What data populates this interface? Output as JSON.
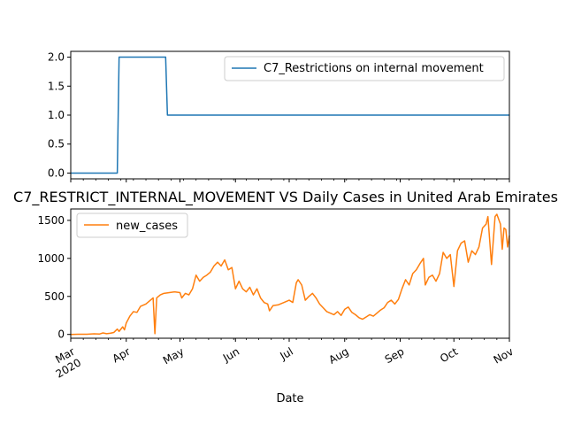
{
  "chart_data": [
    {
      "type": "line",
      "title": "",
      "xlabel": "",
      "ylabel": "",
      "x_axis": "date",
      "xlim": [
        "2020-03-01",
        "2020-11-01"
      ],
      "ylim": [
        -0.1,
        2.1
      ],
      "yticks": [
        "0.0",
        "0.5",
        "1.0",
        "1.5",
        "2.0"
      ],
      "yticks_values": [
        0.0,
        0.5,
        1.0,
        1.5,
        2.0
      ],
      "grid": false,
      "legend": "upper right",
      "series": [
        {
          "name": "C7_Restrictions on internal movement",
          "color": "#1f77b4",
          "points": [
            [
              "2020-03-01",
              0
            ],
            [
              "2020-03-27",
              0
            ],
            [
              "2020-03-28",
              2
            ],
            [
              "2020-04-23",
              2
            ],
            [
              "2020-04-24",
              1
            ],
            [
              "2020-11-01",
              1
            ]
          ]
        }
      ]
    },
    {
      "type": "line",
      "title": "C7_RESTRICT_INTERNAL_MOVEMENT VS Daily Cases in United Arab Emirates",
      "xlabel": "Date",
      "ylabel": "",
      "x_axis": "date",
      "xlim": [
        "2020-03-01",
        "2020-11-01"
      ],
      "ylim": [
        -50,
        1650
      ],
      "yticks": [
        "0",
        "500",
        "1000",
        "1500"
      ],
      "yticks_values": [
        0,
        500,
        1000,
        1500
      ],
      "xticks": [
        {
          "date": "2020-03-01",
          "label": "Mar",
          "sublabel": "2020"
        },
        {
          "date": "2020-04-01",
          "label": "Apr"
        },
        {
          "date": "2020-05-01",
          "label": "May"
        },
        {
          "date": "2020-06-01",
          "label": "Jun"
        },
        {
          "date": "2020-07-01",
          "label": "Jul"
        },
        {
          "date": "2020-08-01",
          "label": "Aug"
        },
        {
          "date": "2020-09-01",
          "label": "Sep"
        },
        {
          "date": "2020-10-01",
          "label": "Oct"
        },
        {
          "date": "2020-11-01",
          "label": "Nov"
        }
      ],
      "grid": false,
      "legend": "upper left",
      "series": [
        {
          "name": "new_cases",
          "color": "#ff7f0e",
          "points": [
            [
              "2020-03-01",
              0
            ],
            [
              "2020-03-05",
              3
            ],
            [
              "2020-03-10",
              2
            ],
            [
              "2020-03-14",
              8
            ],
            [
              "2020-03-17",
              5
            ],
            [
              "2020-03-19",
              20
            ],
            [
              "2020-03-21",
              10
            ],
            [
              "2020-03-23",
              15
            ],
            [
              "2020-03-25",
              25
            ],
            [
              "2020-03-27",
              70
            ],
            [
              "2020-03-28",
              40
            ],
            [
              "2020-03-30",
              100
            ],
            [
              "2020-03-31",
              60
            ],
            [
              "2020-04-01",
              150
            ],
            [
              "2020-04-03",
              240
            ],
            [
              "2020-04-05",
              300
            ],
            [
              "2020-04-07",
              290
            ],
            [
              "2020-04-09",
              370
            ],
            [
              "2020-04-12",
              400
            ],
            [
              "2020-04-15",
              460
            ],
            [
              "2020-04-16",
              480
            ],
            [
              "2020-04-17",
              10
            ],
            [
              "2020-04-18",
              480
            ],
            [
              "2020-04-20",
              520
            ],
            [
              "2020-04-22",
              540
            ],
            [
              "2020-04-25",
              550
            ],
            [
              "2020-04-28",
              560
            ],
            [
              "2020-05-01",
              550
            ],
            [
              "2020-05-02",
              480
            ],
            [
              "2020-05-04",
              540
            ],
            [
              "2020-05-06",
              520
            ],
            [
              "2020-05-08",
              600
            ],
            [
              "2020-05-10",
              780
            ],
            [
              "2020-05-12",
              700
            ],
            [
              "2020-05-14",
              750
            ],
            [
              "2020-05-16",
              780
            ],
            [
              "2020-05-18",
              820
            ],
            [
              "2020-05-20",
              900
            ],
            [
              "2020-05-22",
              950
            ],
            [
              "2020-05-24",
              900
            ],
            [
              "2020-05-26",
              980
            ],
            [
              "2020-05-28",
              850
            ],
            [
              "2020-05-30",
              880
            ],
            [
              "2020-06-01",
              600
            ],
            [
              "2020-06-03",
              700
            ],
            [
              "2020-06-05",
              600
            ],
            [
              "2020-06-07",
              560
            ],
            [
              "2020-06-09",
              620
            ],
            [
              "2020-06-11",
              520
            ],
            [
              "2020-06-13",
              600
            ],
            [
              "2020-06-15",
              480
            ],
            [
              "2020-06-17",
              420
            ],
            [
              "2020-06-19",
              400
            ],
            [
              "2020-06-20",
              310
            ],
            [
              "2020-06-22",
              380
            ],
            [
              "2020-06-25",
              390
            ],
            [
              "2020-06-28",
              420
            ],
            [
              "2020-07-01",
              450
            ],
            [
              "2020-07-03",
              420
            ],
            [
              "2020-07-05",
              680
            ],
            [
              "2020-07-06",
              720
            ],
            [
              "2020-07-08",
              650
            ],
            [
              "2020-07-10",
              450
            ],
            [
              "2020-07-12",
              500
            ],
            [
              "2020-07-14",
              540
            ],
            [
              "2020-07-16",
              480
            ],
            [
              "2020-07-18",
              400
            ],
            [
              "2020-07-20",
              350
            ],
            [
              "2020-07-22",
              300
            ],
            [
              "2020-07-24",
              280
            ],
            [
              "2020-07-26",
              260
            ],
            [
              "2020-07-28",
              300
            ],
            [
              "2020-07-30",
              250
            ],
            [
              "2020-08-01",
              330
            ],
            [
              "2020-08-03",
              360
            ],
            [
              "2020-08-05",
              290
            ],
            [
              "2020-08-07",
              260
            ],
            [
              "2020-08-09",
              220
            ],
            [
              "2020-08-11",
              200
            ],
            [
              "2020-08-13",
              230
            ],
            [
              "2020-08-15",
              260
            ],
            [
              "2020-08-17",
              240
            ],
            [
              "2020-08-19",
              280
            ],
            [
              "2020-08-21",
              320
            ],
            [
              "2020-08-23",
              350
            ],
            [
              "2020-08-25",
              420
            ],
            [
              "2020-08-27",
              450
            ],
            [
              "2020-08-29",
              400
            ],
            [
              "2020-08-31",
              460
            ],
            [
              "2020-09-02",
              600
            ],
            [
              "2020-09-04",
              720
            ],
            [
              "2020-09-06",
              650
            ],
            [
              "2020-09-08",
              800
            ],
            [
              "2020-09-10",
              850
            ],
            [
              "2020-09-12",
              930
            ],
            [
              "2020-09-14",
              1000
            ],
            [
              "2020-09-15",
              650
            ],
            [
              "2020-09-17",
              750
            ],
            [
              "2020-09-19",
              780
            ],
            [
              "2020-09-21",
              700
            ],
            [
              "2020-09-23",
              800
            ],
            [
              "2020-09-25",
              1080
            ],
            [
              "2020-09-27",
              1000
            ],
            [
              "2020-09-29",
              1050
            ],
            [
              "2020-10-01",
              630
            ],
            [
              "2020-10-03",
              1100
            ],
            [
              "2020-10-05",
              1200
            ],
            [
              "2020-10-07",
              1230
            ],
            [
              "2020-10-09",
              950
            ],
            [
              "2020-10-11",
              1100
            ],
            [
              "2020-10-13",
              1050
            ],
            [
              "2020-10-15",
              1150
            ],
            [
              "2020-10-17",
              1400
            ],
            [
              "2020-10-19",
              1450
            ],
            [
              "2020-10-20",
              1550
            ],
            [
              "2020-10-22",
              920
            ],
            [
              "2020-10-24",
              1550
            ],
            [
              "2020-10-25",
              1580
            ],
            [
              "2020-10-27",
              1450
            ],
            [
              "2020-10-28",
              1120
            ],
            [
              "2020-10-29",
              1400
            ],
            [
              "2020-10-30",
              1380
            ],
            [
              "2020-10-31",
              1150
            ],
            [
              "2020-11-01",
              1300
            ]
          ]
        }
      ]
    }
  ]
}
